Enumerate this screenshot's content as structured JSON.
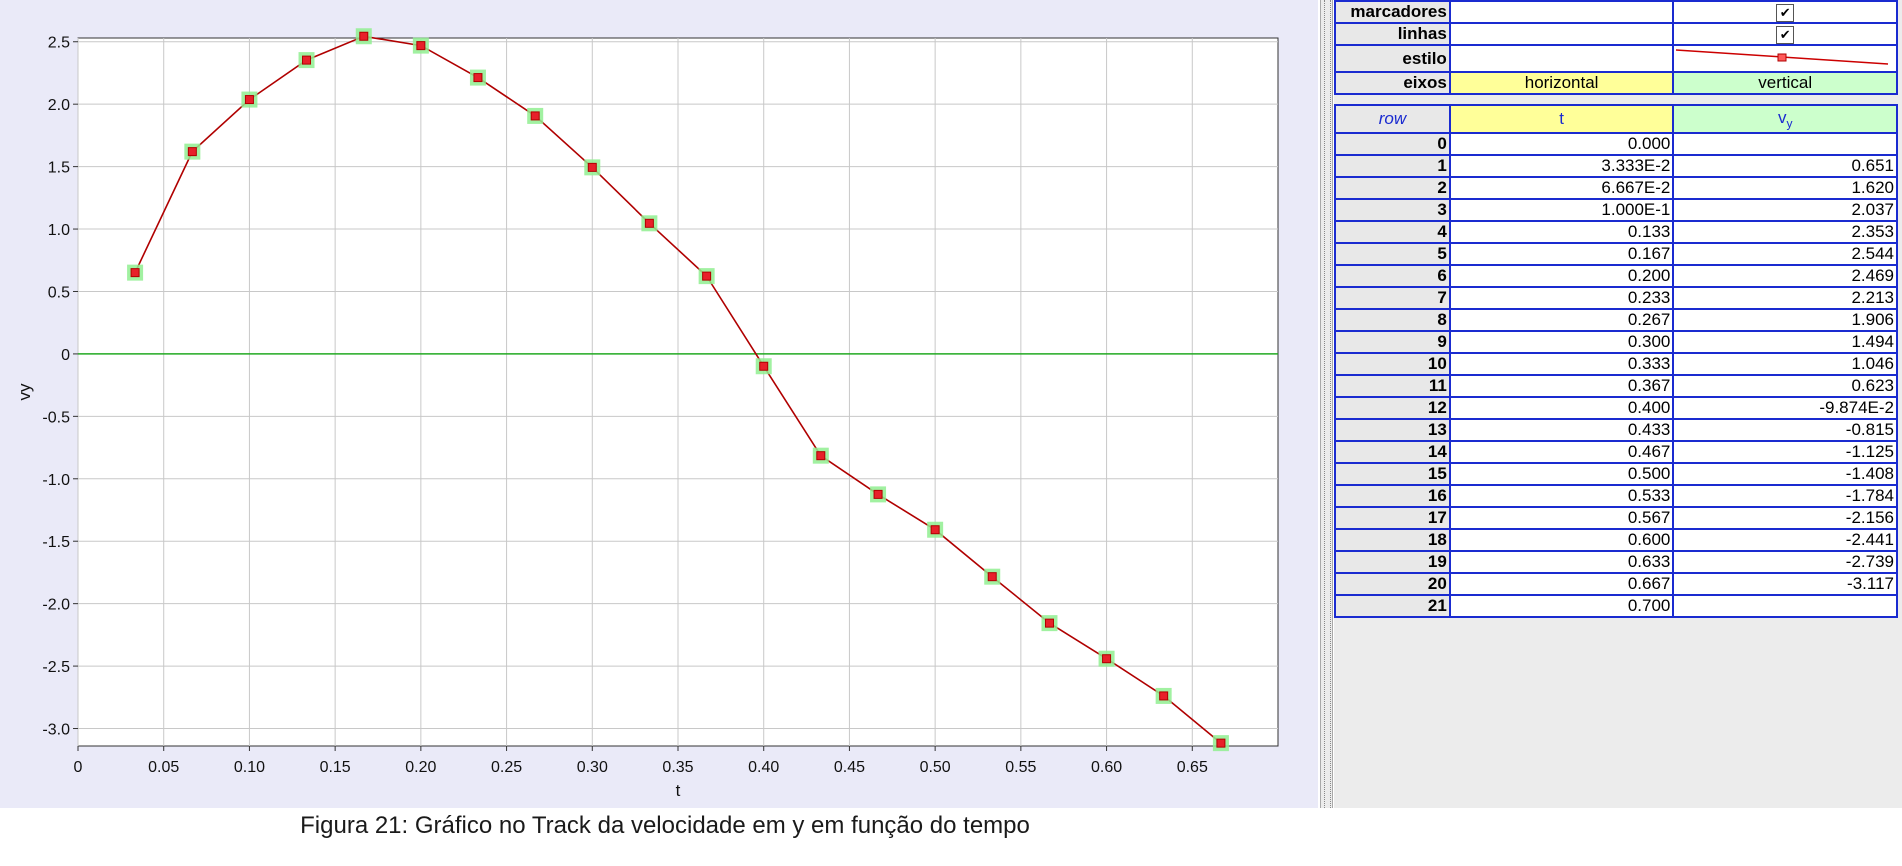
{
  "caption": "Figura 21: Gráfico no Track da velocidade em y em função do tempo",
  "properties": {
    "markers_label": "marcadores",
    "lines_label": "linhas",
    "style_label": "estilo",
    "axes_label": "eixos",
    "horizontal": "horizontal",
    "vertical": "vertical",
    "check_glyph": "✔"
  },
  "table": {
    "col_row": "row",
    "col_t": "t",
    "col_v": "v",
    "col_v_sub": "y",
    "rows": [
      {
        "row": "0",
        "t": "0.000",
        "v": ""
      },
      {
        "row": "1",
        "t": "3.333E-2",
        "v": "0.651"
      },
      {
        "row": "2",
        "t": "6.667E-2",
        "v": "1.620"
      },
      {
        "row": "3",
        "t": "1.000E-1",
        "v": "2.037"
      },
      {
        "row": "4",
        "t": "0.133",
        "v": "2.353"
      },
      {
        "row": "5",
        "t": "0.167",
        "v": "2.544"
      },
      {
        "row": "6",
        "t": "0.200",
        "v": "2.469"
      },
      {
        "row": "7",
        "t": "0.233",
        "v": "2.213"
      },
      {
        "row": "8",
        "t": "0.267",
        "v": "1.906"
      },
      {
        "row": "9",
        "t": "0.300",
        "v": "1.494"
      },
      {
        "row": "10",
        "t": "0.333",
        "v": "1.046"
      },
      {
        "row": "11",
        "t": "0.367",
        "v": "0.623"
      },
      {
        "row": "12",
        "t": "0.400",
        "v": "-9.874E-2"
      },
      {
        "row": "13",
        "t": "0.433",
        "v": "-0.815"
      },
      {
        "row": "14",
        "t": "0.467",
        "v": "-1.125"
      },
      {
        "row": "15",
        "t": "0.500",
        "v": "-1.408"
      },
      {
        "row": "16",
        "t": "0.533",
        "v": "-1.784"
      },
      {
        "row": "17",
        "t": "0.567",
        "v": "-2.156"
      },
      {
        "row": "18",
        "t": "0.600",
        "v": "-2.441"
      },
      {
        "row": "19",
        "t": "0.633",
        "v": "-2.739"
      },
      {
        "row": "20",
        "t": "0.667",
        "v": "-3.117"
      },
      {
        "row": "21",
        "t": "0.700",
        "v": ""
      }
    ]
  },
  "chart_data": {
    "type": "line",
    "xlabel": "t",
    "ylabel": "vy",
    "xlim": [
      0,
      0.7
    ],
    "ylim": [
      -3.14,
      2.53
    ],
    "grid": true,
    "xticks": [
      "0",
      "0.05",
      "0.10",
      "0.15",
      "0.20",
      "0.25",
      "0.30",
      "0.35",
      "0.40",
      "0.45",
      "0.50",
      "0.55",
      "0.60",
      "0.65"
    ],
    "xtick_values": [
      0,
      0.05,
      0.1,
      0.15,
      0.2,
      0.25,
      0.3,
      0.35,
      0.4,
      0.45,
      0.5,
      0.55,
      0.6,
      0.65
    ],
    "yticks": [
      "2.5",
      "2.0",
      "1.5",
      "1.0",
      "0.5",
      "0",
      "-0.5",
      "-1.0",
      "-1.5",
      "-2.0",
      "-2.5",
      "-3.0"
    ],
    "ytick_values": [
      2.5,
      2.0,
      1.5,
      1.0,
      0.5,
      0,
      -0.5,
      -1.0,
      -1.5,
      -2.0,
      -2.5,
      -3.0
    ],
    "series": [
      {
        "x": [
          0.0333,
          0.0667,
          0.1,
          0.1333,
          0.1667,
          0.2,
          0.2333,
          0.2667,
          0.3,
          0.3333,
          0.3667,
          0.4,
          0.4333,
          0.4667,
          0.5,
          0.5333,
          0.5667,
          0.6,
          0.6333,
          0.6667
        ],
        "y": [
          0.651,
          1.62,
          2.037,
          2.353,
          2.544,
          2.469,
          2.213,
          1.906,
          1.494,
          1.046,
          0.623,
          -0.09874,
          -0.815,
          -1.125,
          -1.408,
          -1.784,
          -2.156,
          -2.441,
          -2.739,
          -3.117
        ]
      }
    ],
    "colors": {
      "line": "#b00000",
      "marker": "#e8202a",
      "highlight": "#90ee90",
      "zero_line": "#22aa22",
      "grid": "#c8c8c8"
    }
  }
}
